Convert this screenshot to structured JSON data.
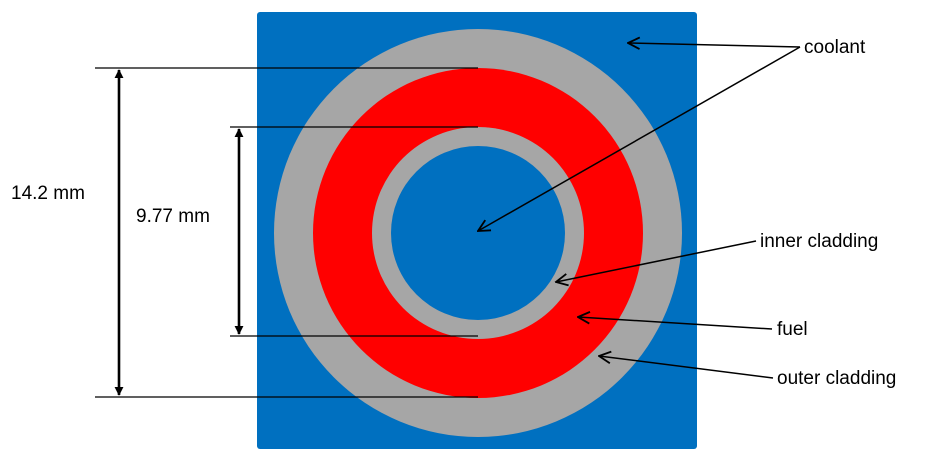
{
  "colors": {
    "coolant": "#0070C0",
    "cladding": "#A6A6A6",
    "fuel": "#FF0000",
    "line": "#000000",
    "background": "#FFFFFF"
  },
  "labels": {
    "coolant": "coolant",
    "inner_cladding": "inner cladding",
    "fuel": "fuel",
    "outer_cladding": "outer cladding"
  },
  "dimensions": {
    "outer": "14.2 mm",
    "inner": "9.77 mm"
  }
}
